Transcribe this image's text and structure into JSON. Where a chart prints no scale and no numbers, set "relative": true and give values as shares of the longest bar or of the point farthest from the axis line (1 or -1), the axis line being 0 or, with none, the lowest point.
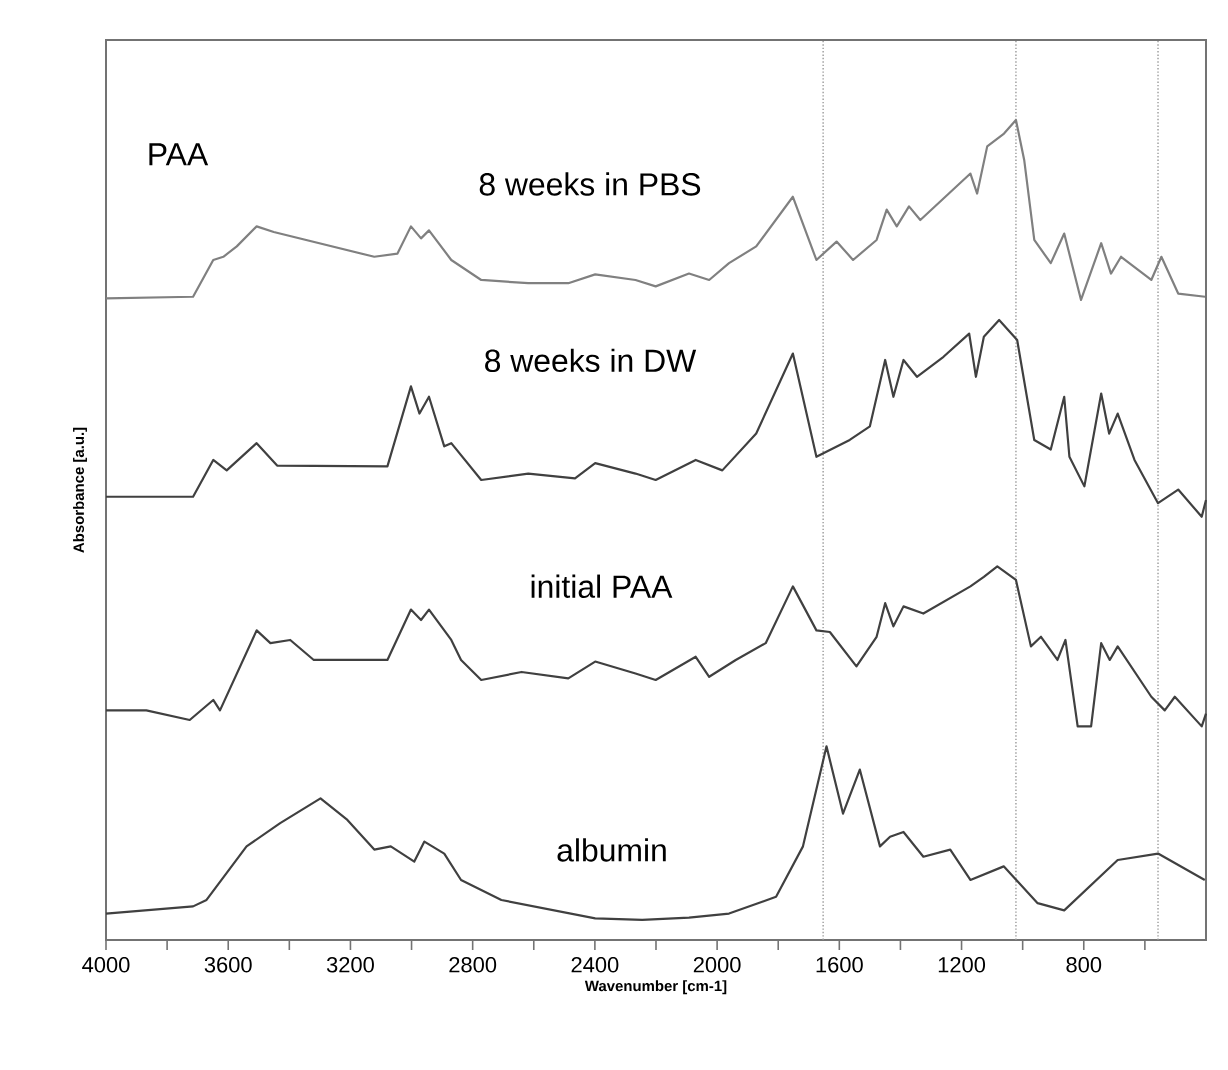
{
  "chart_data": {
    "type": "line",
    "relative": true,
    "xlabel": "Wavenumber [cm-1]",
    "ylabel": "Absorbance [a.u.]",
    "annotations": [
      "PAA"
    ],
    "xlim": [
      4000,
      400
    ],
    "xticks": [
      4000,
      {
        "value": 3800,
        "label": null
      },
      3600,
      {
        "value": 3400,
        "label": null
      },
      3200,
      {
        "value": 3000,
        "label": null
      },
      2800,
      {
        "value": 2600,
        "label": null
      },
      2400,
      {
        "value": 2200,
        "label": null
      },
      2000,
      {
        "value": 1800,
        "label": null
      },
      1600,
      {
        "value": 1400,
        "label": null
      },
      1200,
      {
        "value": 1000,
        "label": null
      },
      800,
      {
        "value": 600,
        "label": null
      }
    ],
    "ref_lines": [
      {
        "axis": "x",
        "value": 1653,
        "color": "#999999",
        "line_style": "dotted"
      },
      {
        "axis": "x",
        "value": 1022,
        "color": "#999999",
        "line_style": "dotted"
      },
      {
        "axis": "x",
        "value": 557,
        "color": "#999999",
        "line_style": "dotted"
      }
    ],
    "series": [
      {
        "name": "8 weeks in PBS",
        "color": "#808080",
        "x": [
          4000,
          3715,
          3649,
          3616,
          3572,
          3507,
          3451,
          3122,
          3046,
          3002,
          2969,
          2943,
          2870,
          2772,
          2618,
          2487,
          2399,
          2267,
          2201,
          2092,
          2026,
          1961,
          1872,
          1752,
          1675,
          1609,
          1555,
          1478,
          1445,
          1412,
          1372,
          1335,
          1171,
          1149,
          1116,
          1061,
          1022,
          995,
          962,
          908,
          864,
          809,
          743,
          711,
          678,
          579,
          546,
          491,
          403
        ],
        "values": [
          0.777,
          0.779,
          0.825,
          0.829,
          0.842,
          0.867,
          0.86,
          0.829,
          0.833,
          0.867,
          0.852,
          0.862,
          0.825,
          0.8,
          0.796,
          0.796,
          0.807,
          0.8,
          0.792,
          0.808,
          0.8,
          0.821,
          0.842,
          0.904,
          0.825,
          0.848,
          0.825,
          0.85,
          0.888,
          0.867,
          0.892,
          0.875,
          0.933,
          0.908,
          0.967,
          0.983,
          1.0,
          0.95,
          0.85,
          0.821,
          0.858,
          0.775,
          0.846,
          0.808,
          0.829,
          0.8,
          0.829,
          0.783,
          0.779
        ]
      },
      {
        "name": "8 weeks in DW",
        "color": "#404040",
        "x": [
          4000,
          3715,
          3649,
          3605,
          3507,
          3440,
          3079,
          3002,
          2974,
          2943,
          2893,
          2870,
          2772,
          2618,
          2465,
          2399,
          2267,
          2201,
          2070,
          1983,
          1872,
          1752,
          1675,
          1566,
          1500,
          1450,
          1423,
          1390,
          1346,
          1259,
          1175,
          1153,
          1127,
          1077,
          1018,
          962,
          908,
          864,
          847,
          798,
          743,
          717,
          689,
          634,
          557,
          491,
          414,
          400
        ],
        "values": [
          0.529,
          0.529,
          0.575,
          0.562,
          0.596,
          0.568,
          0.567,
          0.667,
          0.633,
          0.654,
          0.592,
          0.596,
          0.55,
          0.558,
          0.552,
          0.571,
          0.558,
          0.55,
          0.575,
          0.562,
          0.608,
          0.708,
          0.579,
          0.6,
          0.617,
          0.7,
          0.654,
          0.7,
          0.679,
          0.704,
          0.733,
          0.679,
          0.729,
          0.75,
          0.725,
          0.6,
          0.588,
          0.654,
          0.579,
          0.542,
          0.658,
          0.608,
          0.633,
          0.575,
          0.521,
          0.538,
          0.504,
          0.525
        ]
      },
      {
        "name": "initial PAA",
        "color": "#404040",
        "x": [
          4000,
          3868,
          3726,
          3649,
          3627,
          3507,
          3462,
          3397,
          3320,
          3079,
          3002,
          2969,
          2943,
          2870,
          2838,
          2772,
          2640,
          2487,
          2399,
          2267,
          2201,
          2070,
          2026,
          1939,
          1841,
          1752,
          1675,
          1631,
          1544,
          1478,
          1450,
          1423,
          1390,
          1325,
          1171,
          1127,
          1083,
          1022,
          973,
          940,
          886,
          860,
          820,
          776,
          743,
          715,
          689,
          579,
          535,
          502,
          414,
          400
        ],
        "values": [
          0.262,
          0.262,
          0.25,
          0.275,
          0.262,
          0.362,
          0.346,
          0.35,
          0.325,
          0.325,
          0.388,
          0.375,
          0.388,
          0.35,
          0.325,
          0.3,
          0.31,
          0.302,
          0.323,
          0.308,
          0.3,
          0.329,
          0.304,
          0.325,
          0.346,
          0.417,
          0.362,
          0.36,
          0.317,
          0.354,
          0.396,
          0.367,
          0.392,
          0.383,
          0.417,
          0.429,
          0.442,
          0.425,
          0.342,
          0.354,
          0.325,
          0.35,
          0.242,
          0.242,
          0.346,
          0.325,
          0.342,
          0.279,
          0.262,
          0.279,
          0.242,
          0.258
        ]
      },
      {
        "name": "albumin",
        "color": "#404040",
        "x": [
          4000,
          3715,
          3671,
          3540,
          3430,
          3298,
          3210,
          3122,
          3068,
          2991,
          2958,
          2893,
          2838,
          2706,
          2399,
          2245,
          2092,
          1961,
          1807,
          1719,
          1642,
          1588,
          1533,
          1467,
          1434,
          1390,
          1325,
          1237,
          1171,
          1062,
          951,
          864,
          689,
          557,
          404
        ],
        "values": [
          0.008,
          0.017,
          0.025,
          0.092,
          0.121,
          0.152,
          0.125,
          0.088,
          0.092,
          0.073,
          0.098,
          0.083,
          0.05,
          0.025,
          0.002,
          0.0,
          0.003,
          0.008,
          0.029,
          0.092,
          0.217,
          0.133,
          0.188,
          0.092,
          0.104,
          0.11,
          0.079,
          0.088,
          0.05,
          0.067,
          0.021,
          0.012,
          0.075,
          0.083,
          0.05
        ]
      }
    ]
  }
}
